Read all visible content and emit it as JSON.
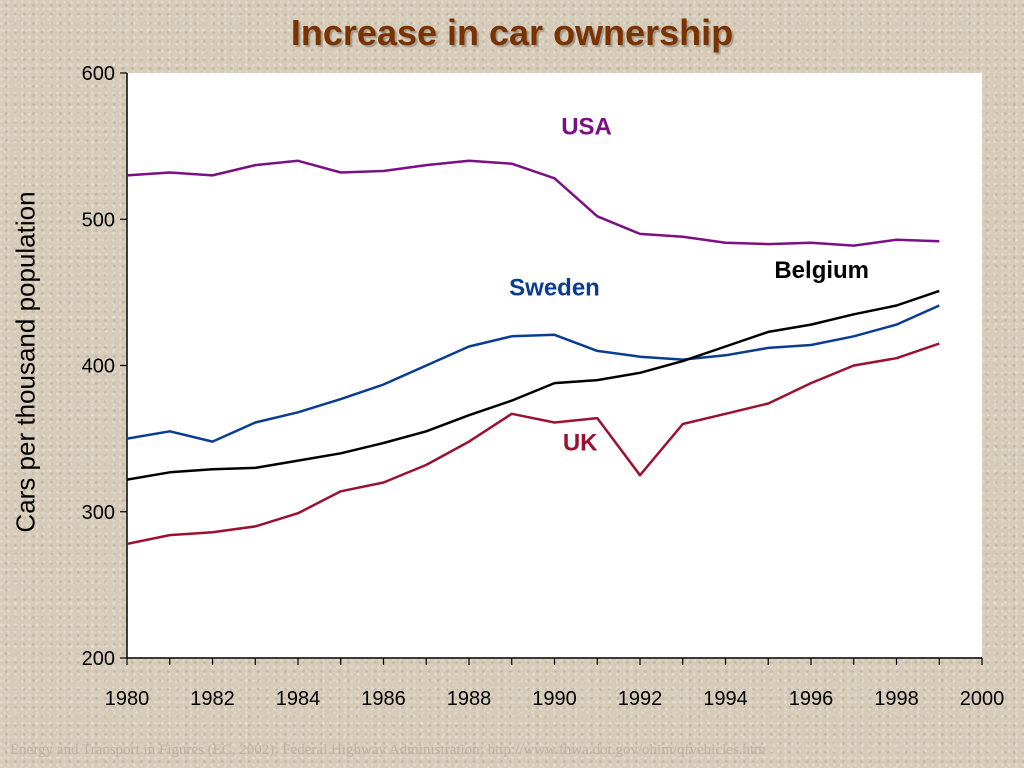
{
  "title": "Increase in car ownership",
  "footer": "Energy and Transport in Figures (EC, 2002); Federal Highway Administration; http://www.fhwa.dot.gov/ohim/qfvehicles.htm",
  "chart_data": {
    "type": "line",
    "title": "Increase in car ownership",
    "xlabel": "",
    "ylabel": "Cars per thousand population",
    "xlim": [
      1980,
      2000
    ],
    "ylim": [
      200,
      600
    ],
    "x_ticks": [
      1980,
      1982,
      1984,
      1986,
      1988,
      1990,
      1992,
      1994,
      1996,
      1998,
      2000
    ],
    "y_ticks": [
      200,
      300,
      400,
      500,
      600
    ],
    "x": [
      1980,
      1981,
      1982,
      1983,
      1984,
      1985,
      1986,
      1987,
      1988,
      1989,
      1990,
      1991,
      1992,
      1993,
      1994,
      1995,
      1996,
      1997,
      1998,
      1999
    ],
    "grid": false,
    "legend": "inline labels",
    "series": [
      {
        "name": "USA",
        "color": "#7b1085",
        "values": [
          530,
          532,
          530,
          537,
          540,
          532,
          533,
          537,
          540,
          538,
          528,
          502,
          490,
          488,
          484,
          483,
          484,
          482,
          486,
          485
        ]
      },
      {
        "name": "Sweden",
        "color": "#0a3d91",
        "values": [
          350,
          355,
          348,
          361,
          368,
          377,
          387,
          400,
          413,
          420,
          421,
          410,
          406,
          404,
          407,
          412,
          414,
          420,
          428,
          441
        ]
      },
      {
        "name": "Belgium",
        "color": "#000000",
        "values": [
          322,
          327,
          329,
          330,
          335,
          340,
          347,
          355,
          366,
          376,
          388,
          390,
          395,
          403,
          413,
          423,
          428,
          435,
          441,
          451
        ]
      },
      {
        "name": "UK",
        "color": "#9b1230",
        "values": [
          278,
          284,
          286,
          290,
          299,
          314,
          320,
          332,
          348,
          367,
          361,
          364,
          325,
          360,
          367,
          374,
          388,
          400,
          405,
          415
        ]
      }
    ]
  }
}
